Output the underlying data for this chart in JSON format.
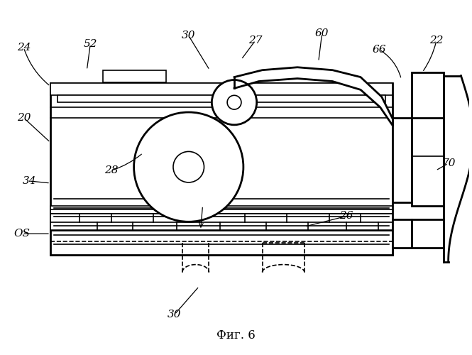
{
  "title": "Фиг. 6",
  "bg_color": "#ffffff",
  "line_color": "#000000",
  "lw": 1.2,
  "lw2": 2.0,
  "lw3": 1.5
}
